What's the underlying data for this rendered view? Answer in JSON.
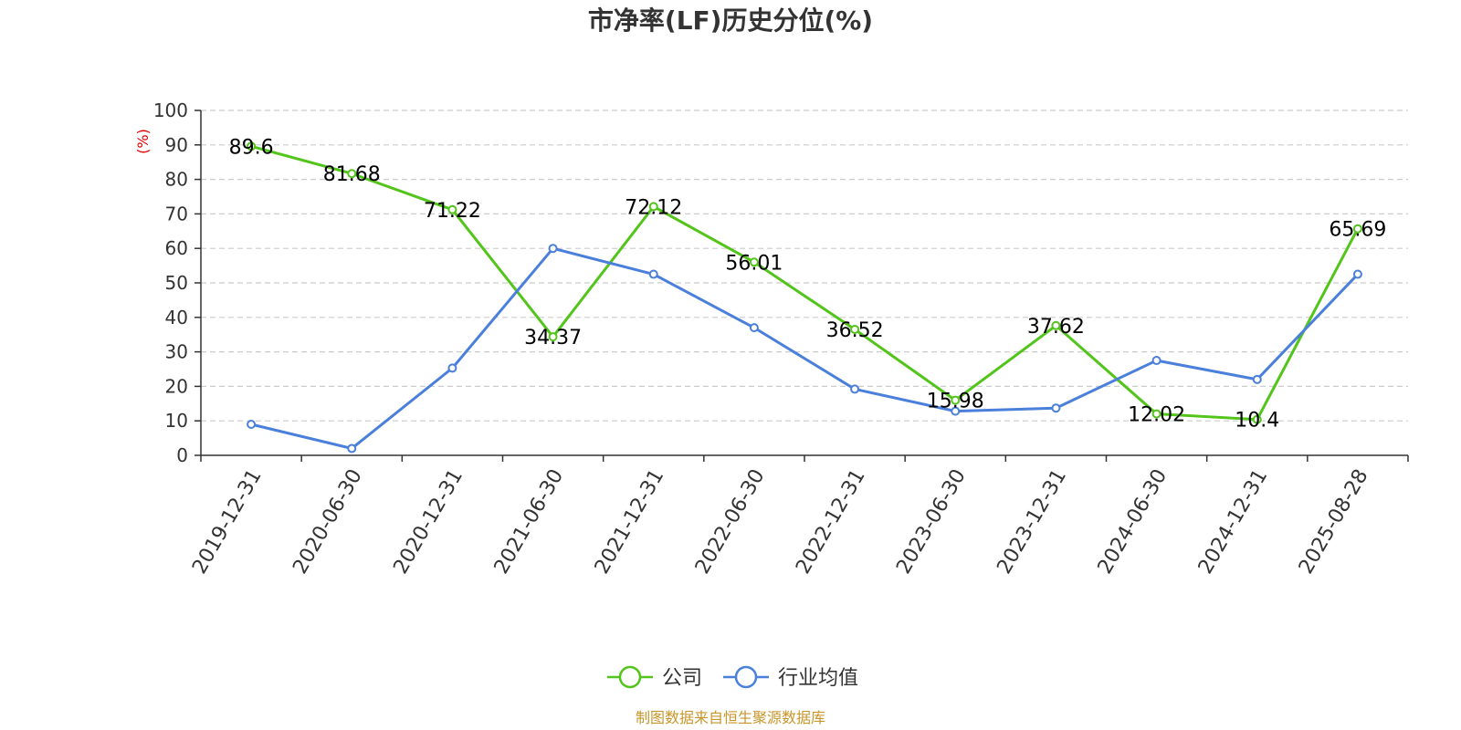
{
  "chart_data": {
    "type": "line",
    "title": "市净率(LF)历史分位(%)",
    "ylabel": "(%)",
    "ylim": [
      0,
      100
    ],
    "yticks": [
      0,
      10,
      20,
      30,
      40,
      50,
      60,
      70,
      80,
      90,
      100
    ],
    "categories": [
      "2019-12-31",
      "2020-06-30",
      "2020-12-31",
      "2021-06-30",
      "2021-12-31",
      "2022-06-30",
      "2022-12-31",
      "2023-06-30",
      "2023-12-31",
      "2024-06-30",
      "2024-12-31",
      "2025-08-28"
    ],
    "series": [
      {
        "name": "公司",
        "color": "#52c41a",
        "values": [
          89.6,
          81.68,
          71.22,
          34.37,
          72.12,
          56.01,
          36.52,
          15.98,
          37.62,
          12.02,
          10.4,
          65.69
        ],
        "labels": [
          "89.6",
          "81.68",
          "71.22",
          "34.37",
          "72.12",
          "56.01",
          "36.52",
          "15.98",
          "37.62",
          "12.02",
          "10.4",
          "65.69"
        ]
      },
      {
        "name": "行业均值",
        "color": "#4a7fdb",
        "values": [
          9,
          2,
          25.3,
          60,
          52.5,
          37,
          19.2,
          12.8,
          13.7,
          27.5,
          22,
          52.5
        ]
      }
    ],
    "grid": true,
    "legend_position": "bottom-center",
    "ylabel_color": "#e00000"
  },
  "source_text": "制图数据来自恒生聚源数据库",
  "source_color": "#c8962a"
}
